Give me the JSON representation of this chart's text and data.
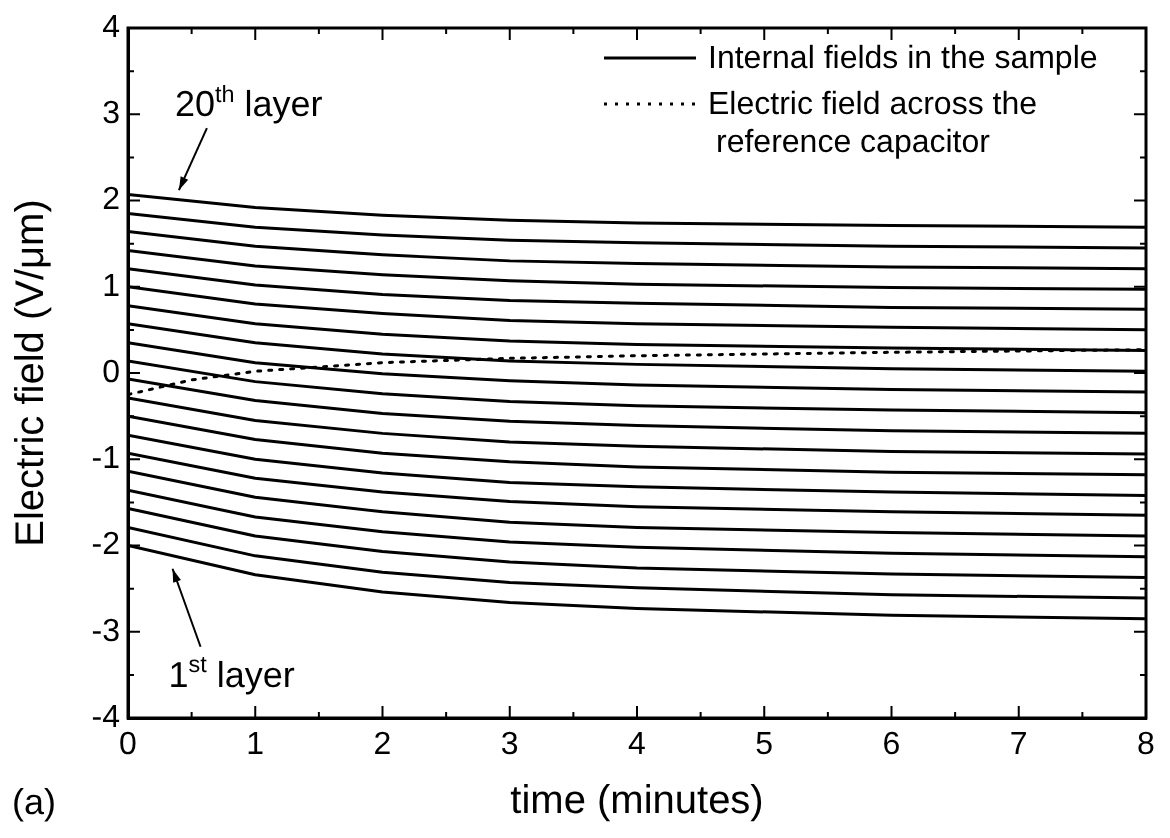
{
  "chart_data": {
    "type": "line",
    "xlabel": "time (minutes)",
    "ylabel": "Electric field (V/μm)",
    "x": [
      0,
      1,
      2,
      3,
      4,
      6,
      8
    ],
    "xlim": [
      0,
      8
    ],
    "ylim": [
      -4,
      4
    ],
    "xticks": [
      0,
      {
        "value": 0.5,
        "label": null
      },
      1,
      {
        "value": 1.5,
        "label": null
      },
      2,
      {
        "value": 2.5,
        "label": null
      },
      3,
      {
        "value": 3.5,
        "label": null
      },
      4,
      {
        "value": 4.5,
        "label": null
      },
      5,
      {
        "value": 5.5,
        "label": null
      },
      6,
      {
        "value": 6.5,
        "label": null
      },
      7,
      {
        "value": 7.5,
        "label": null
      },
      8
    ],
    "yticks": [
      -4,
      {
        "value": -3.5,
        "label": null
      },
      -3,
      {
        "value": -2.5,
        "label": null
      },
      -2,
      {
        "value": -1.5,
        "label": null
      },
      -1,
      {
        "value": -0.5,
        "label": null
      },
      0,
      {
        "value": 0.5,
        "label": null
      },
      1,
      {
        "value": 1.5,
        "label": null
      },
      2,
      {
        "value": 2.5,
        "label": null
      },
      3,
      {
        "value": 3.5,
        "label": null
      },
      4
    ],
    "grid": false,
    "legend": "top right",
    "marker": "none",
    "series": [
      {
        "name": "Internal fields in the sample",
        "color": "#000000",
        "line_style": "solid",
        "values": [
          -2.0,
          -2.34,
          -2.54,
          -2.66,
          -2.73,
          -2.81,
          -2.85
        ]
      },
      {
        "color": "#000000",
        "line_style": "solid",
        "values": [
          -1.79,
          -2.12,
          -2.31,
          -2.43,
          -2.49,
          -2.57,
          -2.61
        ]
      },
      {
        "color": "#000000",
        "line_style": "solid",
        "values": [
          -1.57,
          -1.89,
          -2.07,
          -2.19,
          -2.26,
          -2.33,
          -2.37
        ]
      },
      {
        "color": "#000000",
        "line_style": "solid",
        "values": [
          -1.36,
          -1.67,
          -1.84,
          -1.96,
          -2.02,
          -2.09,
          -2.13
        ]
      },
      {
        "color": "#000000",
        "line_style": "solid",
        "values": [
          -1.14,
          -1.44,
          -1.61,
          -1.73,
          -1.79,
          -1.85,
          -1.89
        ]
      },
      {
        "color": "#000000",
        "line_style": "solid",
        "values": [
          -0.93,
          -1.22,
          -1.38,
          -1.49,
          -1.55,
          -1.61,
          -1.65
        ]
      },
      {
        "color": "#000000",
        "line_style": "solid",
        "values": [
          -0.72,
          -1.0,
          -1.16,
          -1.27,
          -1.32,
          -1.38,
          -1.42
        ]
      },
      {
        "color": "#000000",
        "line_style": "solid",
        "values": [
          -0.5,
          -0.77,
          -0.93,
          -1.03,
          -1.09,
          -1.15,
          -1.18
        ]
      },
      {
        "color": "#000000",
        "line_style": "solid",
        "values": [
          -0.29,
          -0.55,
          -0.7,
          -0.8,
          -0.85,
          -0.91,
          -0.94
        ]
      },
      {
        "color": "#000000",
        "line_style": "solid",
        "values": [
          -0.07,
          -0.32,
          -0.47,
          -0.56,
          -0.61,
          -0.67,
          -0.7
        ]
      },
      {
        "color": "#000000",
        "line_style": "solid",
        "values": [
          0.14,
          -0.1,
          -0.24,
          -0.33,
          -0.38,
          -0.43,
          -0.46
        ]
      },
      {
        "color": "#000000",
        "line_style": "solid",
        "values": [
          0.35,
          0.12,
          -0.01,
          -0.09,
          -0.14,
          -0.19,
          -0.22
        ]
      },
      {
        "color": "#000000",
        "line_style": "solid",
        "values": [
          0.57,
          0.35,
          0.22,
          0.14,
          0.1,
          0.05,
          0.02
        ]
      },
      {
        "color": "#000000",
        "line_style": "solid",
        "values": [
          0.78,
          0.57,
          0.45,
          0.37,
          0.33,
          0.29,
          0.26
        ]
      },
      {
        "color": "#000000",
        "line_style": "solid",
        "values": [
          1.0,
          0.8,
          0.69,
          0.61,
          0.57,
          0.53,
          0.5
        ]
      },
      {
        "color": "#000000",
        "line_style": "solid",
        "values": [
          1.21,
          1.02,
          0.91,
          0.84,
          0.81,
          0.76,
          0.74
        ]
      },
      {
        "color": "#000000",
        "line_style": "solid",
        "values": [
          1.42,
          1.24,
          1.14,
          1.07,
          1.03,
          0.99,
          0.97
        ]
      },
      {
        "color": "#000000",
        "line_style": "solid",
        "values": [
          1.64,
          1.47,
          1.37,
          1.3,
          1.27,
          1.23,
          1.21
        ]
      },
      {
        "color": "#000000",
        "line_style": "solid",
        "values": [
          1.85,
          1.69,
          1.6,
          1.54,
          1.51,
          1.47,
          1.45
        ]
      },
      {
        "color": "#000000",
        "line_style": "solid",
        "values": [
          2.07,
          1.92,
          1.83,
          1.77,
          1.74,
          1.71,
          1.69
        ]
      },
      {
        "name": "Electric field across the reference capacitor",
        "color": "#000000",
        "line_style": "dotted",
        "x": [
          0,
          0.5,
          1,
          2,
          3,
          4,
          6,
          8
        ],
        "values": [
          -0.25,
          -0.08,
          0.02,
          0.12,
          0.17,
          0.2,
          0.24,
          0.27
        ]
      }
    ],
    "annotations": [
      {
        "text": "20$^{th}$ layer",
        "x": 0.4,
        "y": 2.05
      },
      {
        "text": "1$^{st}$ layer",
        "x": 0.35,
        "y": -2.2
      },
      "(a)"
    ]
  }
}
